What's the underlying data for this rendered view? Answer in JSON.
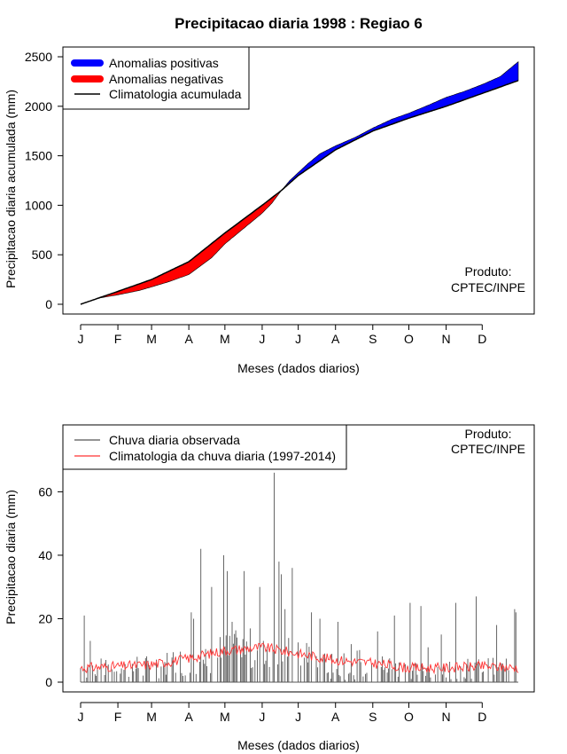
{
  "page": {
    "title": "Precipitacao diaria 1998 : Regiao 6"
  },
  "colors": {
    "positive": "#0000ff",
    "negative": "#ff0000",
    "climatology": "#000000",
    "observed": "#555555",
    "clim_daily": "#ff3333"
  },
  "chart_data": [
    {
      "type": "area",
      "title": "Precipitacao diaria 1998 : Regiao 6",
      "xlabel": "Meses (dados diarios)",
      "ylabel": "Precipitacao diaria acumulada (mm)",
      "xlim": [
        1,
        365
      ],
      "ylim": [
        0,
        2500
      ],
      "yticks": [
        0,
        500,
        1000,
        1500,
        2000,
        2500
      ],
      "month_labels": [
        "J",
        "F",
        "M",
        "A",
        "M",
        "J",
        "J",
        "A",
        "S",
        "O",
        "N",
        "D"
      ],
      "month_days": [
        1,
        32,
        60,
        91,
        121,
        152,
        182,
        213,
        244,
        274,
        305,
        335
      ],
      "legend": {
        "position": "top-left",
        "entries": [
          "Anomalias positivas",
          "Anomalias negativas",
          "Climatologia acumulada"
        ]
      },
      "annotation": [
        "Produto:",
        "CPTEC/INPE"
      ],
      "climatology_accumulated": {
        "day": [
          1,
          32,
          60,
          91,
          121,
          152,
          168,
          182,
          213,
          244,
          274,
          305,
          335,
          365
        ],
        "value": [
          0,
          130,
          250,
          430,
          720,
          1000,
          1150,
          1300,
          1560,
          1750,
          1880,
          2000,
          2130,
          2260
        ]
      },
      "observed_accumulated": {
        "day": [
          1,
          15,
          32,
          50,
          60,
          75,
          91,
          110,
          121,
          140,
          152,
          160,
          168,
          175,
          182,
          190,
          200,
          213,
          230,
          244,
          260,
          274,
          290,
          305,
          320,
          335,
          350,
          362,
          365
        ],
        "value": [
          0,
          60,
          95,
          140,
          175,
          230,
          300,
          470,
          610,
          800,
          920,
          1020,
          1150,
          1250,
          1330,
          1420,
          1520,
          1600,
          1690,
          1780,
          1870,
          1930,
          2010,
          2090,
          2150,
          2220,
          2300,
          2420,
          2450
        ]
      }
    },
    {
      "type": "line",
      "title": "",
      "xlabel": "Meses (dados diarios)",
      "ylabel": "Precipitacao diaria (mm)",
      "xlim": [
        1,
        365
      ],
      "ylim": [
        0,
        78
      ],
      "yticks": [
        0,
        20,
        40,
        60
      ],
      "month_labels": [
        "J",
        "F",
        "M",
        "A",
        "M",
        "J",
        "J",
        "A",
        "S",
        "O",
        "N",
        "D"
      ],
      "month_days": [
        1,
        32,
        60,
        91,
        121,
        152,
        182,
        213,
        244,
        274,
        305,
        335
      ],
      "legend": {
        "position": "top-left",
        "entries": [
          "Chuva diaria observada",
          "Climatologia da chuva diaria (1997-2014)"
        ]
      },
      "annotation": [
        "Produto:",
        "CPTEC/INPE"
      ],
      "observed_daily_peaks": {
        "day": [
          4,
          9,
          22,
          48,
          93,
          95,
          101,
          110,
          120,
          123,
          127,
          137,
          150,
          153,
          162,
          166,
          168,
          171,
          177,
          193,
          200,
          215,
          226,
          248,
          262,
          275,
          284,
          290,
          301,
          313,
          330,
          347,
          362,
          363
        ],
        "value": [
          21,
          13,
          7,
          8,
          22,
          20,
          42,
          30,
          40,
          35,
          19,
          35,
          30,
          13,
          66,
          38,
          34,
          23,
          36,
          22,
          20,
          19,
          12,
          16,
          21,
          25,
          24,
          11,
          15,
          25,
          27,
          18,
          23,
          22
        ]
      },
      "climatology_daily": {
        "day": [
          1,
          32,
          60,
          91,
          121,
          152,
          182,
          213,
          244,
          274,
          305,
          335,
          365
        ],
        "value": [
          4.5,
          5,
          5.5,
          7.5,
          10,
          11,
          9,
          7,
          6,
          4.5,
          4.5,
          5,
          4.5
        ]
      }
    }
  ]
}
